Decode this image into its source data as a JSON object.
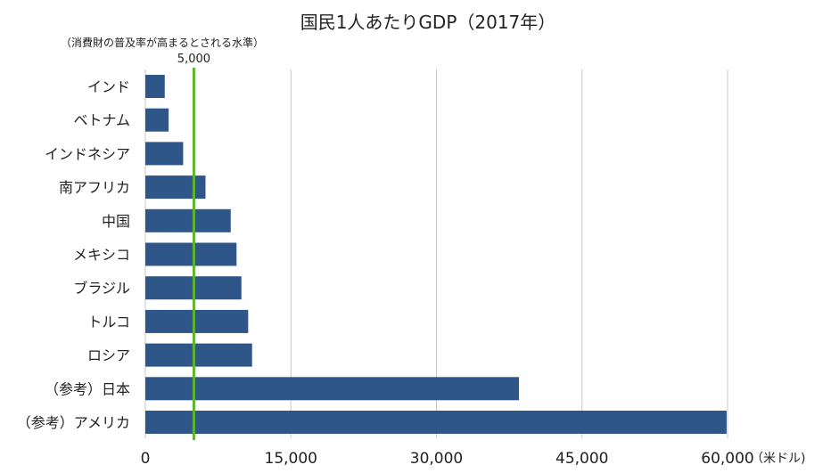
{
  "chart_data": {
    "type": "bar",
    "orientation": "horizontal",
    "title": "国民1人あたりGDP（2017年）",
    "xlabel": "",
    "unit": "（米ドル)",
    "xlim": [
      0,
      60000
    ],
    "xticks": [
      0,
      15000,
      30000,
      45000,
      60000
    ],
    "xtick_labels": [
      "0",
      "15,000",
      "30,000",
      "45,000",
      "60,000"
    ],
    "grid": "vertical",
    "categories": [
      "インド",
      "ベトナム",
      "インドネシア",
      "南アフリカ",
      "中国",
      "メキシコ",
      "ブラジル",
      "トルコ",
      "ロシア",
      "（参考）日本",
      "（参考）アメリカ"
    ],
    "values": [
      2000,
      2400,
      3900,
      6200,
      8800,
      9400,
      9900,
      10600,
      11000,
      38500,
      59900
    ],
    "reference_line": {
      "value": 5000,
      "label": "5,000",
      "note": "（消費財の普及率が高まるとされる水準）"
    },
    "colors": {
      "bar": "#2e5688",
      "reference_line": "#5fb42d",
      "grid": "#c8c8c8"
    }
  }
}
